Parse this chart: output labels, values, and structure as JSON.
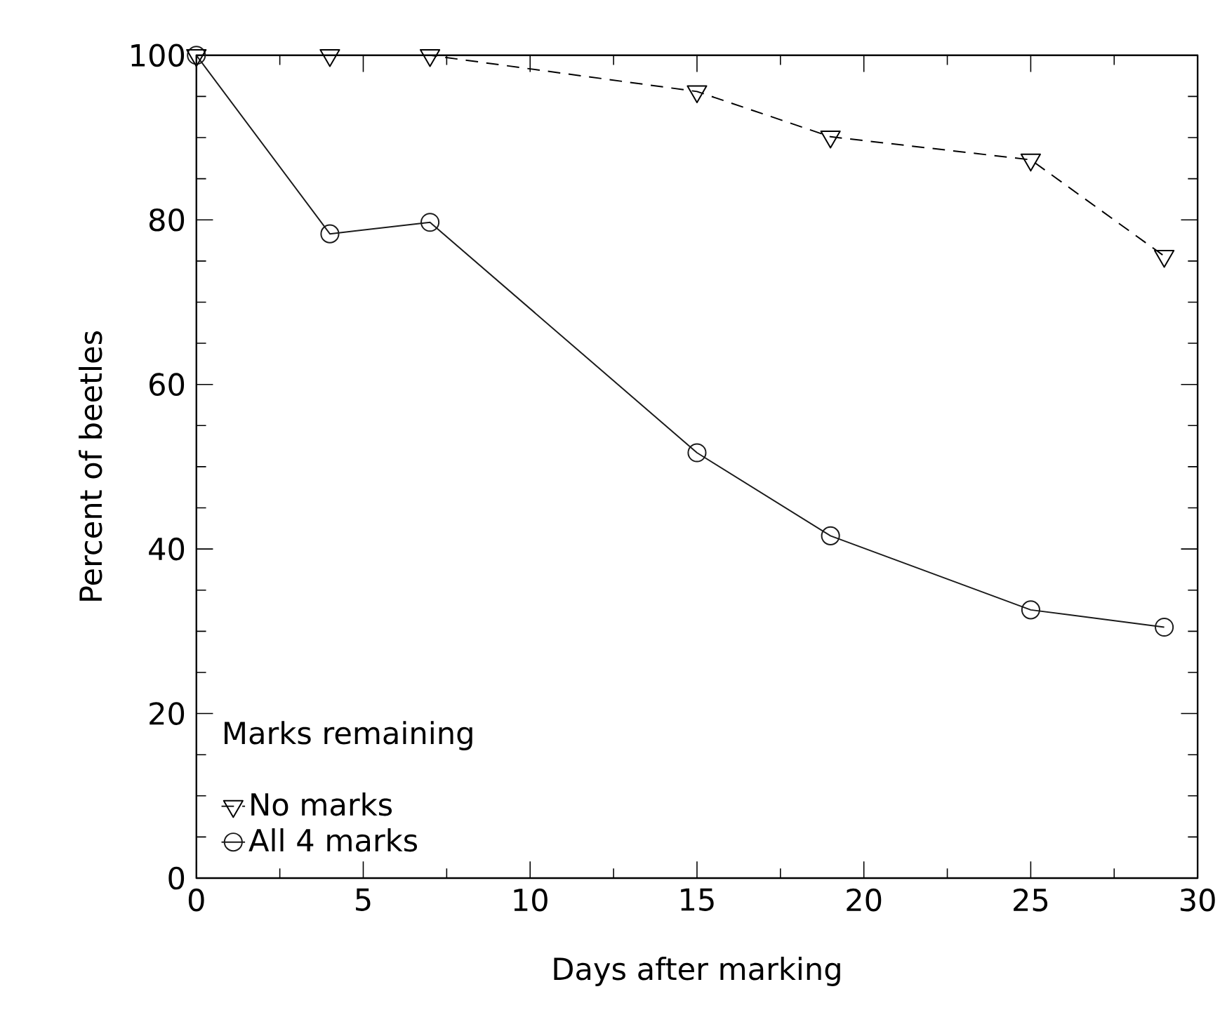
{
  "chart_data": {
    "type": "line",
    "xlabel": "Days after marking",
    "ylabel": "Percent of beetles",
    "legend_title": "Marks remaining",
    "legend": "bottom left",
    "xlim": [
      0,
      30
    ],
    "ylim": [
      0,
      100
    ],
    "xticks": [
      0,
      5,
      10,
      15,
      20,
      25,
      30
    ],
    "yticks": [
      0,
      20,
      40,
      60,
      80,
      100
    ],
    "x": [
      0,
      4,
      7,
      15,
      19,
      25,
      29
    ],
    "series": [
      {
        "name": "No marks",
        "color": "#000000",
        "marker": "triangle",
        "line_style": "dashed",
        "values": [
          100,
          100,
          100,
          95.6,
          90.1,
          87.3,
          75.6
        ]
      },
      {
        "name": "All 4 marks",
        "color": "#1a1a1a",
        "marker": "circle",
        "line_style": "solid",
        "values": [
          100,
          78.3,
          79.7,
          51.7,
          41.6,
          32.6,
          30.5
        ]
      }
    ]
  }
}
